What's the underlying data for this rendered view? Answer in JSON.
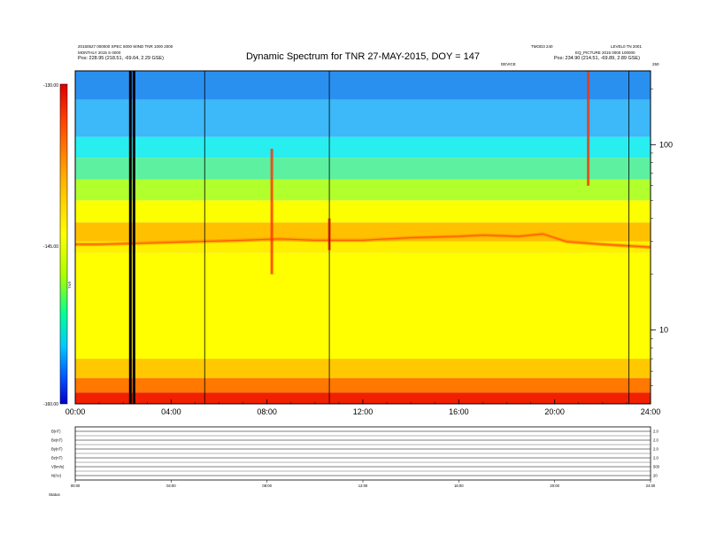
{
  "header": {
    "title": "Dynamic Spectrum for TNR 27-MAY-2015, DOY = 147",
    "left_line1": "20150527 000000 SPEC 5000 WIND TNR 1000 2000",
    "left_line2": "MONTHLY 2015 S 0000",
    "left_pos": "Pos: 228.95 (218.51, -69.64, 2.29 GSE)",
    "right_code": "TMOD3 240",
    "right_line1": "LEVEL0 TN 2001",
    "right_line2": "EQ_PICTURE 2015 0000 100000",
    "right_pos": "Pos: 234.90 (214.51, -69.89, 2.89 GSE)",
    "center_tag": "DEVICE"
  },
  "colorbar": {
    "top_label": "-130.00",
    "mid_label": "-145.00",
    "bottom_label": "-160.00",
    "unit_label": "TNR"
  },
  "chart_data": {
    "type": "heatmap",
    "title": "Dynamic Spectrum for TNR 27-MAY-2015, DOY = 147",
    "x_unit": "hours UT",
    "xlim": [
      0,
      24
    ],
    "x_ticks": [
      "00:00",
      "04:00",
      "08:00",
      "12:00",
      "16:00",
      "20:00",
      "24:00"
    ],
    "y_scale": "log",
    "ylim": [
      4,
      250
    ],
    "y_ticks": [
      {
        "value": 10,
        "label": "10"
      },
      {
        "value": 100,
        "label": "100"
      }
    ],
    "y_top_label": "250",
    "colorbar_range": [
      -160,
      -130
    ],
    "colorbar_ticks": [
      "-130.00",
      "-145.00",
      "-160.00"
    ],
    "colormap": [
      "#0000c8",
      "#0050ff",
      "#00c8ff",
      "#00ff96",
      "#aaff00",
      "#ffff00",
      "#ffb400",
      "#ff4600",
      "#dc0000"
    ],
    "background_bands": [
      {
        "from": 175,
        "to": 250,
        "color": "#2a90f0"
      },
      {
        "from": 110,
        "to": 175,
        "color": "#3db8f8"
      },
      {
        "from": 85,
        "to": 110,
        "color": "#28eef0"
      },
      {
        "from": 65,
        "to": 85,
        "color": "#5cf0a0"
      },
      {
        "from": 50,
        "to": 65,
        "color": "#b2ff2e"
      },
      {
        "from": 38,
        "to": 50,
        "color": "#fbff00"
      },
      {
        "from": 30,
        "to": 38,
        "color": "#ffc000"
      },
      {
        "from": 26,
        "to": 30,
        "color": "#fff000"
      },
      {
        "from": 7,
        "to": 26,
        "color": "#ffff00"
      },
      {
        "from": 5.5,
        "to": 7,
        "color": "#ffc800"
      },
      {
        "from": 4.6,
        "to": 5.5,
        "color": "#ff7800"
      },
      {
        "from": 4,
        "to": 4.6,
        "color": "#f02000"
      }
    ],
    "plasma_line": [
      {
        "t": 0.0,
        "f": 29
      },
      {
        "t": 1.0,
        "f": 29
      },
      {
        "t": 3.0,
        "f": 29.5
      },
      {
        "t": 5.0,
        "f": 30
      },
      {
        "t": 7.0,
        "f": 30.5
      },
      {
        "t": 8.5,
        "f": 31
      },
      {
        "t": 10.0,
        "f": 30.5
      },
      {
        "t": 12.0,
        "f": 30.5
      },
      {
        "t": 14.0,
        "f": 31.5
      },
      {
        "t": 16.0,
        "f": 32
      },
      {
        "t": 17.0,
        "f": 32.5
      },
      {
        "t": 18.5,
        "f": 32
      },
      {
        "t": 19.5,
        "f": 33
      },
      {
        "t": 20.5,
        "f": 30
      },
      {
        "t": 22.0,
        "f": 29
      },
      {
        "t": 24.0,
        "f": 28
      }
    ],
    "data_gaps": [
      2.3,
      2.45
    ],
    "dividers": [
      5.4,
      10.6,
      23.1
    ],
    "bursts": [
      {
        "t": 8.2,
        "f_low": 20,
        "f_high": 95
      },
      {
        "t": 10.6,
        "f_low": 27,
        "f_high": 40
      },
      {
        "t": 21.4,
        "f_low": 60,
        "f_high": 250
      }
    ]
  },
  "bottom_panels": {
    "rows": [
      {
        "label": "B(nT)",
        "right": "2.0"
      },
      {
        "label": "Bx(nT)",
        "right": "2.0"
      },
      {
        "label": "By(nT)",
        "right": "2.0"
      },
      {
        "label": "Bz(nT)",
        "right": "2.0"
      },
      {
        "label": "V(km/s)",
        "right": "500"
      },
      {
        "label": "N(/cc)",
        "right": "20"
      }
    ],
    "x_ticks": [
      "00:00",
      "04:00",
      "08:00",
      "12:00",
      "16:00",
      "20:00",
      "24:00"
    ],
    "status_label": "Status"
  }
}
